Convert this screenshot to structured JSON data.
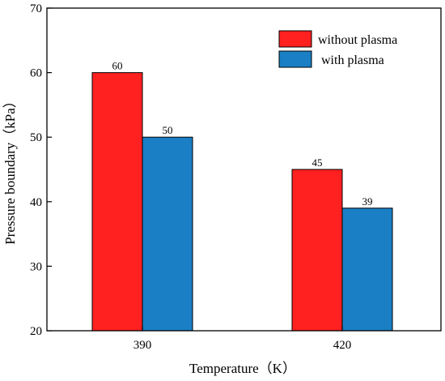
{
  "chart_data": {
    "type": "bar",
    "categories": [
      "390",
      "420"
    ],
    "series": [
      {
        "name": "without plasma",
        "values": [
          60,
          45
        ],
        "color": "#ff2020"
      },
      {
        "name": "with plasma",
        "values": [
          50,
          39
        ],
        "color": "#1a7fc4"
      }
    ],
    "xlabel": "Temperature（K）",
    "ylabel": "Pressure boundary（kPa）",
    "ylim": [
      20,
      70
    ],
    "yticks": [
      20,
      30,
      40,
      50,
      60,
      70
    ],
    "grid": false,
    "legend_position": "top-right"
  }
}
